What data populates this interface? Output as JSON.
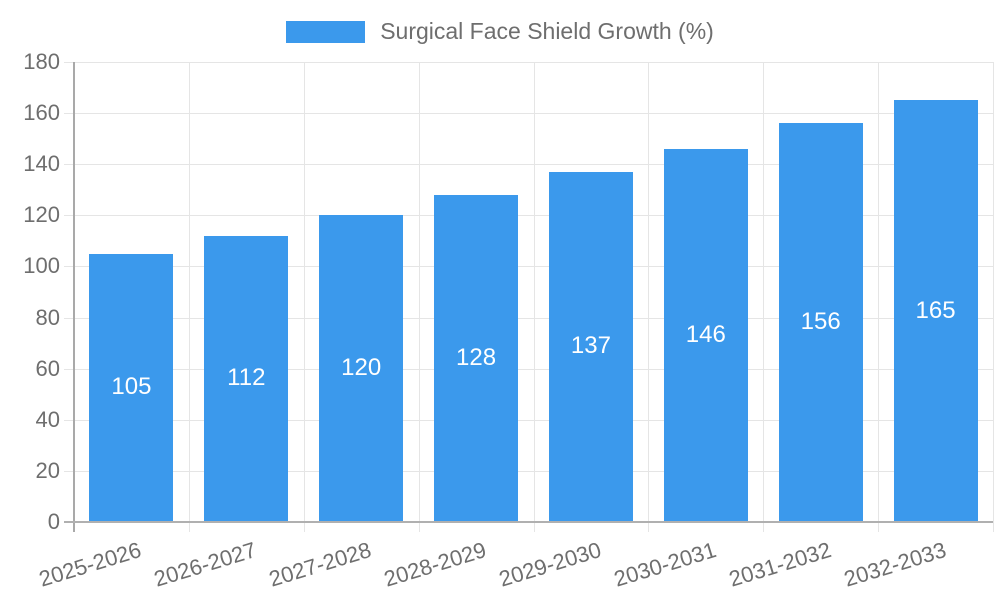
{
  "chart_data": {
    "type": "bar",
    "title": "Surgical Face Shield Growth (%)",
    "legend": {
      "label": "Surgical Face Shield Growth (%)",
      "position": "top"
    },
    "categories": [
      "2025-2026",
      "2026-2027",
      "2027-2028",
      "2028-2029",
      "2029-2030",
      "2030-2031",
      "2031-2032",
      "2032-2033"
    ],
    "values": [
      105,
      112,
      120,
      128,
      137,
      146,
      156,
      165
    ],
    "yticks": [
      0,
      20,
      40,
      60,
      80,
      100,
      120,
      140,
      160,
      180
    ],
    "ylim": [
      0,
      180
    ],
    "grid": true,
    "bar_color": "#3b99ec",
    "bar_label_color": "#ffffff",
    "axis_text_color": "#6e6e6e",
    "gridline_color": "#e5e5e5",
    "axis_line_color": "#a9a9a9"
  }
}
